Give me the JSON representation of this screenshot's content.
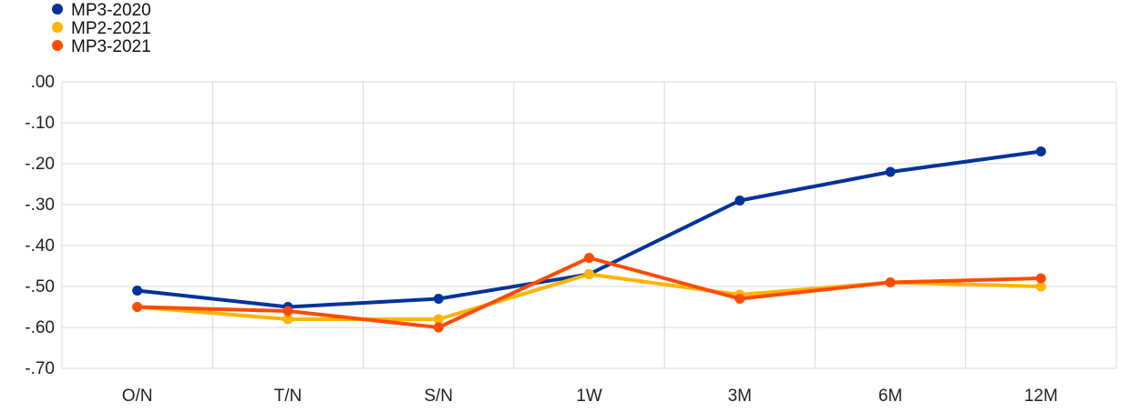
{
  "chart_data": {
    "type": "line",
    "categories": [
      "O/N",
      "T/N",
      "S/N",
      "1W",
      "3M",
      "6M",
      "12M"
    ],
    "y_tick_labels": [
      ".00",
      "-.10",
      "-.20",
      "-.30",
      "-.40",
      "-.50",
      "-.60",
      "-.70"
    ],
    "ylim": [
      -0.7,
      0.0
    ],
    "grid": true,
    "legend_position": "top-left",
    "series": [
      {
        "name": "MP3-2020",
        "color": "#003399",
        "values": [
          -0.51,
          -0.55,
          -0.53,
          -0.47,
          -0.29,
          -0.22,
          -0.17
        ]
      },
      {
        "name": "MP2-2021",
        "color": "#FFB400",
        "values": [
          -0.55,
          -0.58,
          -0.58,
          -0.47,
          -0.52,
          -0.49,
          -0.5
        ]
      },
      {
        "name": "MP3-2021",
        "color": "#FF4B00",
        "values": [
          -0.55,
          -0.56,
          -0.6,
          -0.43,
          -0.53,
          -0.49,
          -0.48
        ]
      }
    ]
  }
}
